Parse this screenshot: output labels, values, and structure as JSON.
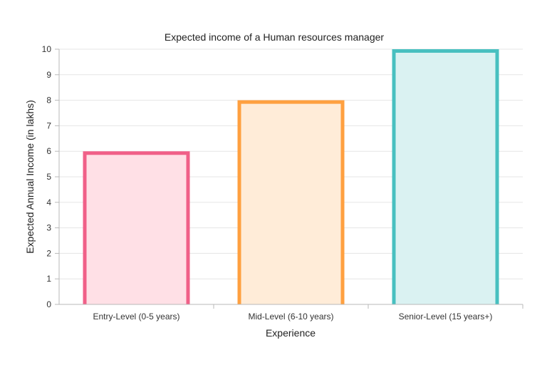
{
  "chart_data": {
    "type": "bar",
    "title": "Expected income of a Human resources manager",
    "xlabel": "Experience",
    "ylabel": "Expected Annual Income (in lakhs)",
    "categories": [
      "Entry-Level (0-5 years)",
      "Mid-Level (6-10 years)",
      "Senior-Level (15 years+)"
    ],
    "values": [
      6,
      8,
      10
    ],
    "ylim": [
      0,
      10
    ],
    "yticks": [
      0,
      1,
      2,
      3,
      4,
      5,
      6,
      7,
      8,
      9,
      10
    ],
    "grid": true,
    "legend": "none",
    "bar_colors": [
      {
        "stroke": "#f06088",
        "fill": "#ffe0e6"
      },
      {
        "stroke": "#ffa040",
        "fill": "#ffecd8"
      },
      {
        "stroke": "#48c0c0",
        "fill": "#daf2f2"
      }
    ]
  }
}
